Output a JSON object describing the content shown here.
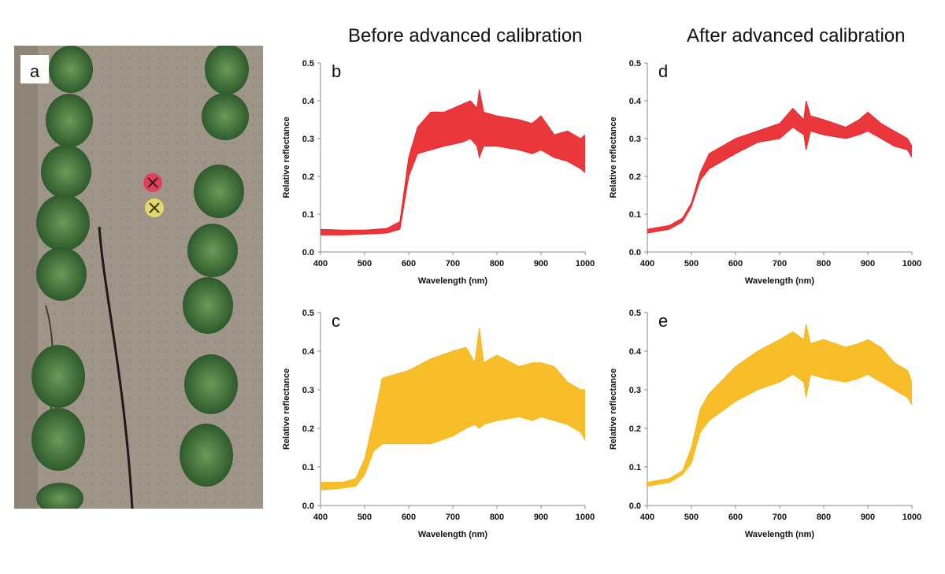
{
  "headings": {
    "before": "Before advanced calibration",
    "after": "After advanced calibration"
  },
  "photo": {
    "label": "a",
    "description_icons": [
      "red-target-marker-icon",
      "yellow-target-marker-icon"
    ],
    "colors": {
      "soil": "#9c9285",
      "plant": "#3d6b35",
      "red_marker": "#e0405a",
      "yellow_marker": "#e3d86a"
    }
  },
  "chart_data": [
    {
      "id": "b",
      "type": "area",
      "panel_label": "b",
      "color": "#e8262b",
      "xlabel": "Wavelength (nm)",
      "ylabel": "Relative reflectance",
      "xlim": [
        400,
        1000
      ],
      "ylim": [
        0,
        0.5
      ],
      "xticks": [
        400,
        500,
        600,
        700,
        800,
        900,
        1000
      ],
      "yticks": [
        0.0,
        0.1,
        0.2,
        0.3,
        0.4,
        0.5
      ],
      "series": [
        {
          "role": "band_upper",
          "x": [
            400,
            450,
            500,
            550,
            580,
            600,
            620,
            650,
            680,
            720,
            740,
            755,
            760,
            770,
            800,
            850,
            880,
            900,
            930,
            960,
            990,
            1000
          ],
          "values": [
            0.06,
            0.058,
            0.058,
            0.062,
            0.08,
            0.25,
            0.33,
            0.37,
            0.37,
            0.39,
            0.4,
            0.38,
            0.43,
            0.37,
            0.36,
            0.35,
            0.34,
            0.36,
            0.31,
            0.32,
            0.3,
            0.31
          ]
        },
        {
          "role": "band_lower",
          "x": [
            400,
            450,
            500,
            550,
            580,
            600,
            620,
            650,
            680,
            720,
            740,
            755,
            760,
            770,
            800,
            850,
            880,
            900,
            930,
            960,
            990,
            1000
          ],
          "values": [
            0.045,
            0.045,
            0.047,
            0.05,
            0.06,
            0.2,
            0.26,
            0.27,
            0.28,
            0.29,
            0.3,
            0.28,
            0.25,
            0.28,
            0.28,
            0.27,
            0.26,
            0.27,
            0.25,
            0.24,
            0.22,
            0.21
          ]
        }
      ]
    },
    {
      "id": "c",
      "type": "area",
      "panel_label": "c",
      "color": "#f6b817",
      "xlabel": "Wavelength (nm)",
      "ylabel": "Relative reflectance",
      "xlim": [
        400,
        1000
      ],
      "ylim": [
        0,
        0.5
      ],
      "xticks": [
        400,
        500,
        600,
        700,
        800,
        900,
        1000
      ],
      "yticks": [
        0.0,
        0.1,
        0.2,
        0.3,
        0.4,
        0.5
      ],
      "series": [
        {
          "role": "band_upper",
          "x": [
            400,
            450,
            480,
            500,
            520,
            540,
            600,
            650,
            700,
            730,
            750,
            760,
            770,
            800,
            850,
            880,
            900,
            930,
            960,
            990,
            1000
          ],
          "values": [
            0.06,
            0.06,
            0.07,
            0.12,
            0.22,
            0.33,
            0.35,
            0.38,
            0.4,
            0.41,
            0.37,
            0.46,
            0.37,
            0.39,
            0.36,
            0.37,
            0.37,
            0.36,
            0.32,
            0.3,
            0.3
          ]
        },
        {
          "role": "band_lower",
          "x": [
            400,
            450,
            480,
            500,
            520,
            540,
            600,
            650,
            700,
            730,
            750,
            760,
            770,
            800,
            850,
            880,
            900,
            930,
            960,
            990,
            1000
          ],
          "values": [
            0.04,
            0.045,
            0.05,
            0.08,
            0.14,
            0.16,
            0.16,
            0.16,
            0.18,
            0.2,
            0.21,
            0.2,
            0.21,
            0.22,
            0.23,
            0.22,
            0.23,
            0.22,
            0.21,
            0.19,
            0.17
          ]
        }
      ]
    },
    {
      "id": "d",
      "type": "area",
      "panel_label": "d",
      "color": "#e8262b",
      "xlabel": "Wavelength (nm)",
      "ylabel": "Relative reflectance",
      "xlim": [
        400,
        1000
      ],
      "ylim": [
        0,
        0.5
      ],
      "xticks": [
        400,
        500,
        600,
        700,
        800,
        900,
        1000
      ],
      "yticks": [
        0.0,
        0.1,
        0.2,
        0.3,
        0.4,
        0.5
      ],
      "series": [
        {
          "role": "band_upper",
          "x": [
            400,
            450,
            480,
            500,
            520,
            540,
            600,
            650,
            700,
            730,
            755,
            760,
            770,
            800,
            850,
            880,
            900,
            930,
            960,
            990,
            1000
          ],
          "values": [
            0.06,
            0.07,
            0.09,
            0.13,
            0.21,
            0.26,
            0.3,
            0.32,
            0.34,
            0.38,
            0.35,
            0.4,
            0.36,
            0.35,
            0.33,
            0.35,
            0.37,
            0.34,
            0.32,
            0.3,
            0.28
          ]
        },
        {
          "role": "band_lower",
          "x": [
            400,
            450,
            480,
            500,
            520,
            540,
            600,
            650,
            700,
            730,
            755,
            760,
            770,
            800,
            850,
            880,
            900,
            930,
            960,
            990,
            1000
          ],
          "values": [
            0.05,
            0.06,
            0.08,
            0.12,
            0.19,
            0.22,
            0.26,
            0.29,
            0.3,
            0.33,
            0.31,
            0.27,
            0.32,
            0.31,
            0.3,
            0.31,
            0.32,
            0.3,
            0.28,
            0.27,
            0.25
          ]
        }
      ]
    },
    {
      "id": "e",
      "type": "area",
      "panel_label": "e",
      "color": "#f6b817",
      "xlabel": "Wavelength (nm)",
      "ylabel": "Relative reflectance",
      "xlim": [
        400,
        1000
      ],
      "ylim": [
        0,
        0.5
      ],
      "xticks": [
        400,
        500,
        600,
        700,
        800,
        900,
        1000
      ],
      "yticks": [
        0.0,
        0.1,
        0.2,
        0.3,
        0.4,
        0.5
      ],
      "series": [
        {
          "role": "band_upper",
          "x": [
            400,
            450,
            480,
            500,
            520,
            540,
            600,
            650,
            700,
            730,
            755,
            760,
            770,
            800,
            850,
            880,
            900,
            930,
            960,
            990,
            1000
          ],
          "values": [
            0.06,
            0.07,
            0.09,
            0.15,
            0.25,
            0.29,
            0.36,
            0.4,
            0.43,
            0.45,
            0.43,
            0.47,
            0.42,
            0.43,
            0.41,
            0.42,
            0.43,
            0.41,
            0.37,
            0.35,
            0.32
          ]
        },
        {
          "role": "band_lower",
          "x": [
            400,
            450,
            480,
            500,
            520,
            540,
            600,
            650,
            700,
            730,
            755,
            760,
            770,
            800,
            850,
            880,
            900,
            930,
            960,
            990,
            1000
          ],
          "values": [
            0.05,
            0.06,
            0.08,
            0.11,
            0.19,
            0.22,
            0.27,
            0.3,
            0.32,
            0.34,
            0.32,
            0.28,
            0.34,
            0.33,
            0.32,
            0.33,
            0.34,
            0.32,
            0.3,
            0.28,
            0.26
          ]
        }
      ]
    }
  ]
}
